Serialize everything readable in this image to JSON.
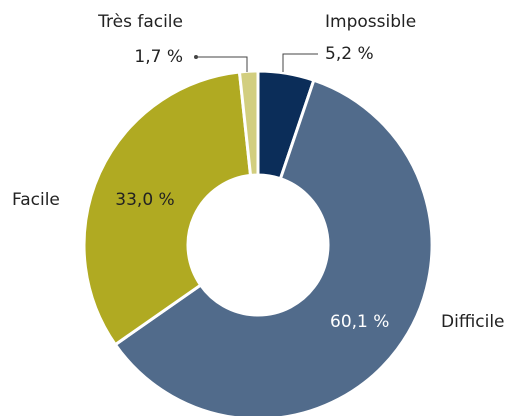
{
  "chart_data": {
    "type": "donut",
    "categories": [
      "Impossible",
      "Difficile",
      "Facile",
      "Très facile"
    ],
    "values": [
      5.2,
      60.1,
      33.0,
      1.7
    ],
    "value_labels": [
      "5,2 %",
      "60,1 %",
      "33,0 %",
      "1,7 %"
    ],
    "colors": [
      "#0b2d59",
      "#516b8b",
      "#b0aa22",
      "#d2ce7f"
    ]
  }
}
